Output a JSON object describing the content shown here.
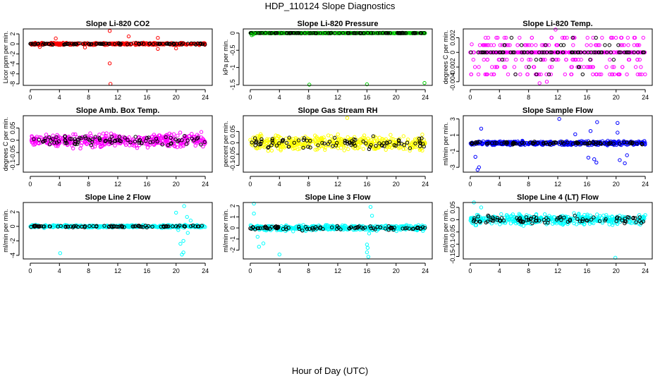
{
  "figure": {
    "title": "HDP_110124  Slope Diagnostics",
    "xlabel": "Hour of Day (UTC)"
  },
  "chart_data": [
    {
      "type": "scatter",
      "title": "Slope Li-820 CO2",
      "ylabel": "Licor ppm per min.",
      "color": "#ff0000",
      "xlim": [
        0,
        24
      ],
      "xticks": [
        0,
        4,
        8,
        12,
        16,
        20,
        24
      ],
      "ylim": [
        -8.3,
        3.0
      ],
      "yticks": [
        -8,
        -6,
        -4,
        -2,
        0,
        2
      ],
      "spread": 0.3,
      "outliers": [
        [
          10.9,
          2.6
        ],
        [
          10.9,
          -3.9
        ],
        [
          11,
          -8
        ],
        [
          13.5,
          1.5
        ],
        [
          3.5,
          1.1
        ],
        [
          17.5,
          1.2
        ],
        [
          17.5,
          -1.0
        ],
        [
          20,
          -0.9
        ],
        [
          7.5,
          -0.7
        ],
        [
          1.3,
          -0.6
        ]
      ]
    },
    {
      "type": "scatter",
      "title": "Slope Li-820 Pressure",
      "ylabel": "kPa per min.",
      "color": "#00cc00",
      "xlim": [
        0,
        24
      ],
      "xticks": [
        0,
        4,
        8,
        12,
        16,
        20,
        24
      ],
      "ylim": [
        -1.52,
        0.12
      ],
      "yticks": [
        -1.5,
        -1.0,
        -0.5,
        0.0
      ],
      "spread": 0.012,
      "outliers": [
        [
          8.1,
          -1.5
        ],
        [
          16,
          -1.49
        ],
        [
          23.9,
          -1.45
        ],
        [
          0.2,
          -0.06
        ],
        [
          0.4,
          -0.04
        ]
      ]
    },
    {
      "type": "scatter",
      "title": "Slope Li-820 Temp.",
      "ylabel": "degrees C per min.",
      "color": "#ff00ff",
      "xlim": [
        0,
        24
      ],
      "xticks": [
        0,
        4,
        8,
        12,
        16,
        20,
        24
      ],
      "ylim": [
        -0.0045,
        0.0032
      ],
      "yticks": [
        -0.004,
        -0.002,
        0.0,
        0.002
      ],
      "levels": [
        -0.003,
        -0.002,
        -0.001,
        0,
        0.001,
        0.002
      ],
      "outliers": [
        [
          9.5,
          -0.0042
        ],
        [
          11.7,
          0.0031
        ],
        [
          0.2,
          0.0011
        ],
        [
          10.5,
          -0.004
        ]
      ]
    },
    {
      "type": "scatter",
      "title": "Slope Amb. Box Temp.",
      "ylabel": "degrees C per min.",
      "color": "#ff00ff",
      "xlim": [
        0,
        24
      ],
      "xticks": [
        0,
        4,
        8,
        12,
        16,
        20,
        24
      ],
      "ylim": [
        -0.13,
        0.1
      ],
      "yticks": [
        -0.1,
        -0.05,
        0.0,
        0.05
      ],
      "spread": 0.038,
      "outliers": []
    },
    {
      "type": "scatter",
      "title": "Slope Gas Stream RH",
      "ylabel": "percent per min.",
      "color": "#ffff00",
      "xlim": [
        0,
        24
      ],
      "xticks": [
        0,
        4,
        8,
        12,
        16,
        20,
        24
      ],
      "ylim": [
        -0.13,
        0.12
      ],
      "yticks": [
        -0.1,
        -0.05,
        0.0,
        0.05
      ],
      "spread": 0.045,
      "outliers": [
        [
          13.3,
          0.11
        ]
      ]
    },
    {
      "type": "scatter",
      "title": "Slope Sample Flow",
      "ylabel": "ml/min per min.",
      "color": "#0000ff",
      "xlim": [
        0,
        24
      ],
      "xticks": [
        0,
        4,
        8,
        12,
        16,
        20,
        24
      ],
      "ylim": [
        -3.6,
        3.4
      ],
      "yticks": [
        -3,
        -1,
        1,
        3
      ],
      "spread": 0.35,
      "outliers": [
        [
          1,
          -3.3
        ],
        [
          1.2,
          -3.0
        ],
        [
          1.5,
          1.8
        ],
        [
          12.2,
          3.0
        ],
        [
          14.4,
          1.1
        ],
        [
          16.5,
          1.5
        ],
        [
          17.4,
          2.6
        ],
        [
          17,
          -2.0
        ],
        [
          17.3,
          -2.4
        ],
        [
          20.2,
          2.5
        ],
        [
          20.2,
          1.3
        ],
        [
          20.5,
          -2.1
        ],
        [
          21.2,
          -2.5
        ],
        [
          21.5,
          -1.5
        ],
        [
          16.2,
          -1.8
        ],
        [
          0.7,
          -1.7
        ]
      ]
    },
    {
      "type": "scatter",
      "title": "Slope Line 2 Flow",
      "ylabel": "ml/min per min.",
      "color": "#00ffff",
      "xlim": [
        0,
        24
      ],
      "xticks": [
        0,
        4,
        8,
        12,
        16,
        20,
        24
      ],
      "ylim": [
        -4.5,
        3.3
      ],
      "yticks": [
        -4,
        -2,
        0,
        2
      ],
      "spread": 0.25,
      "outliers": [
        [
          4.1,
          -3.7
        ],
        [
          20,
          1.9
        ],
        [
          20.3,
          -0.5
        ],
        [
          20.6,
          -2.4
        ],
        [
          20.8,
          -3.9
        ],
        [
          21,
          -3.6
        ],
        [
          21,
          -2.0
        ],
        [
          21.1,
          2.8
        ],
        [
          21.5,
          1.3
        ],
        [
          21.6,
          -0.9
        ],
        [
          22,
          0.8
        ]
      ]
    },
    {
      "type": "scatter",
      "title": "Slope Line 3 Flow",
      "ylabel": "ml/min per min.",
      "color": "#00ffff",
      "xlim": [
        0,
        24
      ],
      "xticks": [
        0,
        4,
        8,
        12,
        16,
        20,
        24
      ],
      "ylim": [
        -2.8,
        2.3
      ],
      "yticks": [
        -2,
        -1,
        0,
        1,
        2
      ],
      "spread": 0.35,
      "outliers": [
        [
          0.5,
          2.2
        ],
        [
          0.5,
          1.3
        ],
        [
          1,
          -0.8
        ],
        [
          1.2,
          -1.7
        ],
        [
          4,
          -2.4
        ],
        [
          16,
          -2.2
        ],
        [
          16.1,
          -1.8
        ],
        [
          16,
          -1.5
        ],
        [
          16.3,
          -0.5
        ],
        [
          16.5,
          1.9
        ],
        [
          16.7,
          1.1
        ],
        [
          16.2,
          -2.6
        ],
        [
          1.8,
          -1.4
        ]
      ]
    },
    {
      "type": "scatter",
      "title": "Slope Line 4 (LT) Flow",
      "ylabel": "ml/min per min.",
      "color": "#00ffff",
      "xlim": [
        0,
        24
      ],
      "xticks": [
        0,
        4,
        8,
        12,
        16,
        20,
        24
      ],
      "ylim": [
        -0.16,
        0.07
      ],
      "yticks": [
        -0.15,
        -0.1,
        -0.05,
        0.0,
        0.05
      ],
      "spread": 0.03,
      "outliers": [
        [
          0.5,
          0.07
        ],
        [
          19.9,
          -0.155
        ],
        [
          1.5,
          0.05
        ]
      ]
    }
  ]
}
